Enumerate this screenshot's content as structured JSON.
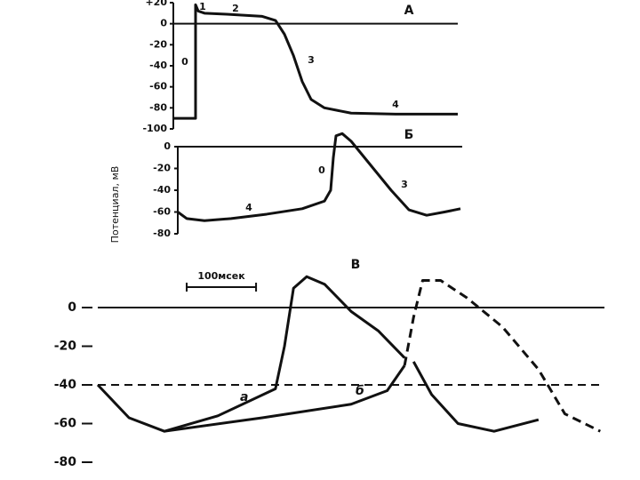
{
  "chart_data": [
    {
      "type": "line",
      "title": "А",
      "xlim": [
        0,
        320
      ],
      "ylim": [
        -100,
        20
      ],
      "yticks": [
        {
          "value": 20,
          "label": "+20"
        },
        0,
        -20,
        -40,
        -60,
        -80,
        -100
      ],
      "hlines": [
        {
          "value": 0,
          "dash": false
        }
      ],
      "annotations": [
        "0",
        "1",
        "2",
        "3",
        "4"
      ],
      "series": [
        {
          "color": "#111111",
          "dash": false,
          "x": [
            0,
            25,
            25,
            28,
            35,
            60,
            100,
            115,
            125,
            135,
            145,
            155,
            170,
            200,
            250,
            320
          ],
          "values": [
            -90,
            -90,
            18,
            12,
            10,
            9,
            7,
            3,
            -10,
            -30,
            -55,
            -72,
            -80,
            -85,
            -86,
            -86
          ]
        }
      ]
    },
    {
      "type": "line",
      "title": "Б",
      "y_label": "Потенциал, мВ",
      "xlim": [
        0,
        320
      ],
      "ylim": [
        -80,
        0
      ],
      "yticks": [
        0,
        -20,
        -40,
        -60,
        -80
      ],
      "hlines": [
        {
          "value": 0,
          "dash": false
        }
      ],
      "annotations": [
        "4",
        "0",
        "3"
      ],
      "series": [
        {
          "color": "#111111",
          "dash": false,
          "x": [
            0,
            10,
            30,
            60,
            100,
            140,
            165,
            172,
            175,
            178,
            185,
            195,
            210,
            240,
            260,
            280,
            300,
            318
          ],
          "values": [
            -60,
            -66,
            -68,
            -66,
            -62,
            -57,
            -50,
            -40,
            -10,
            10,
            12,
            5,
            -10,
            -40,
            -58,
            -63,
            -60,
            -57
          ]
        }
      ]
    },
    {
      "type": "line",
      "title": "В",
      "xlim": [
        0,
        730
      ],
      "ylim": [
        -80,
        0
      ],
      "yticks": [
        0,
        -20,
        -40,
        -60,
        -80
      ],
      "scale_bar": {
        "label": "100мсек",
        "value": 100
      },
      "hlines": [
        {
          "value": 0,
          "dash": false
        },
        {
          "value": -40,
          "dash": true
        }
      ],
      "series": [
        {
          "name": "а",
          "color": "#111111",
          "dash": false,
          "x": [
            0,
            45,
            96,
            173,
            256,
            269,
            282,
            301,
            327,
            365,
            404,
            442
          ],
          "values": [
            -40,
            -57,
            -64,
            -56,
            -42,
            -20,
            10,
            16,
            12,
            -2,
            -12,
            -26
          ]
        },
        {
          "name": "б",
          "color": "#111111",
          "dash": false,
          "x": [
            96,
            237,
            365,
            417,
            442
          ],
          "values": [
            -64,
            -57,
            -50,
            -43,
            -30
          ]
        },
        {
          "color": "#111111",
          "dash": true,
          "x": [
            442,
            455,
            468,
            494,
            532,
            583,
            635,
            673,
            724
          ],
          "values": [
            -30,
            -5,
            14,
            14,
            5,
            -10,
            -32,
            -55,
            -64
          ]
        },
        {
          "color": "#111111",
          "dash": false,
          "x": [
            455,
            481,
            519,
            571,
            635
          ],
          "values": [
            -28,
            -45,
            -60,
            -64,
            -58
          ]
        }
      ]
    }
  ]
}
